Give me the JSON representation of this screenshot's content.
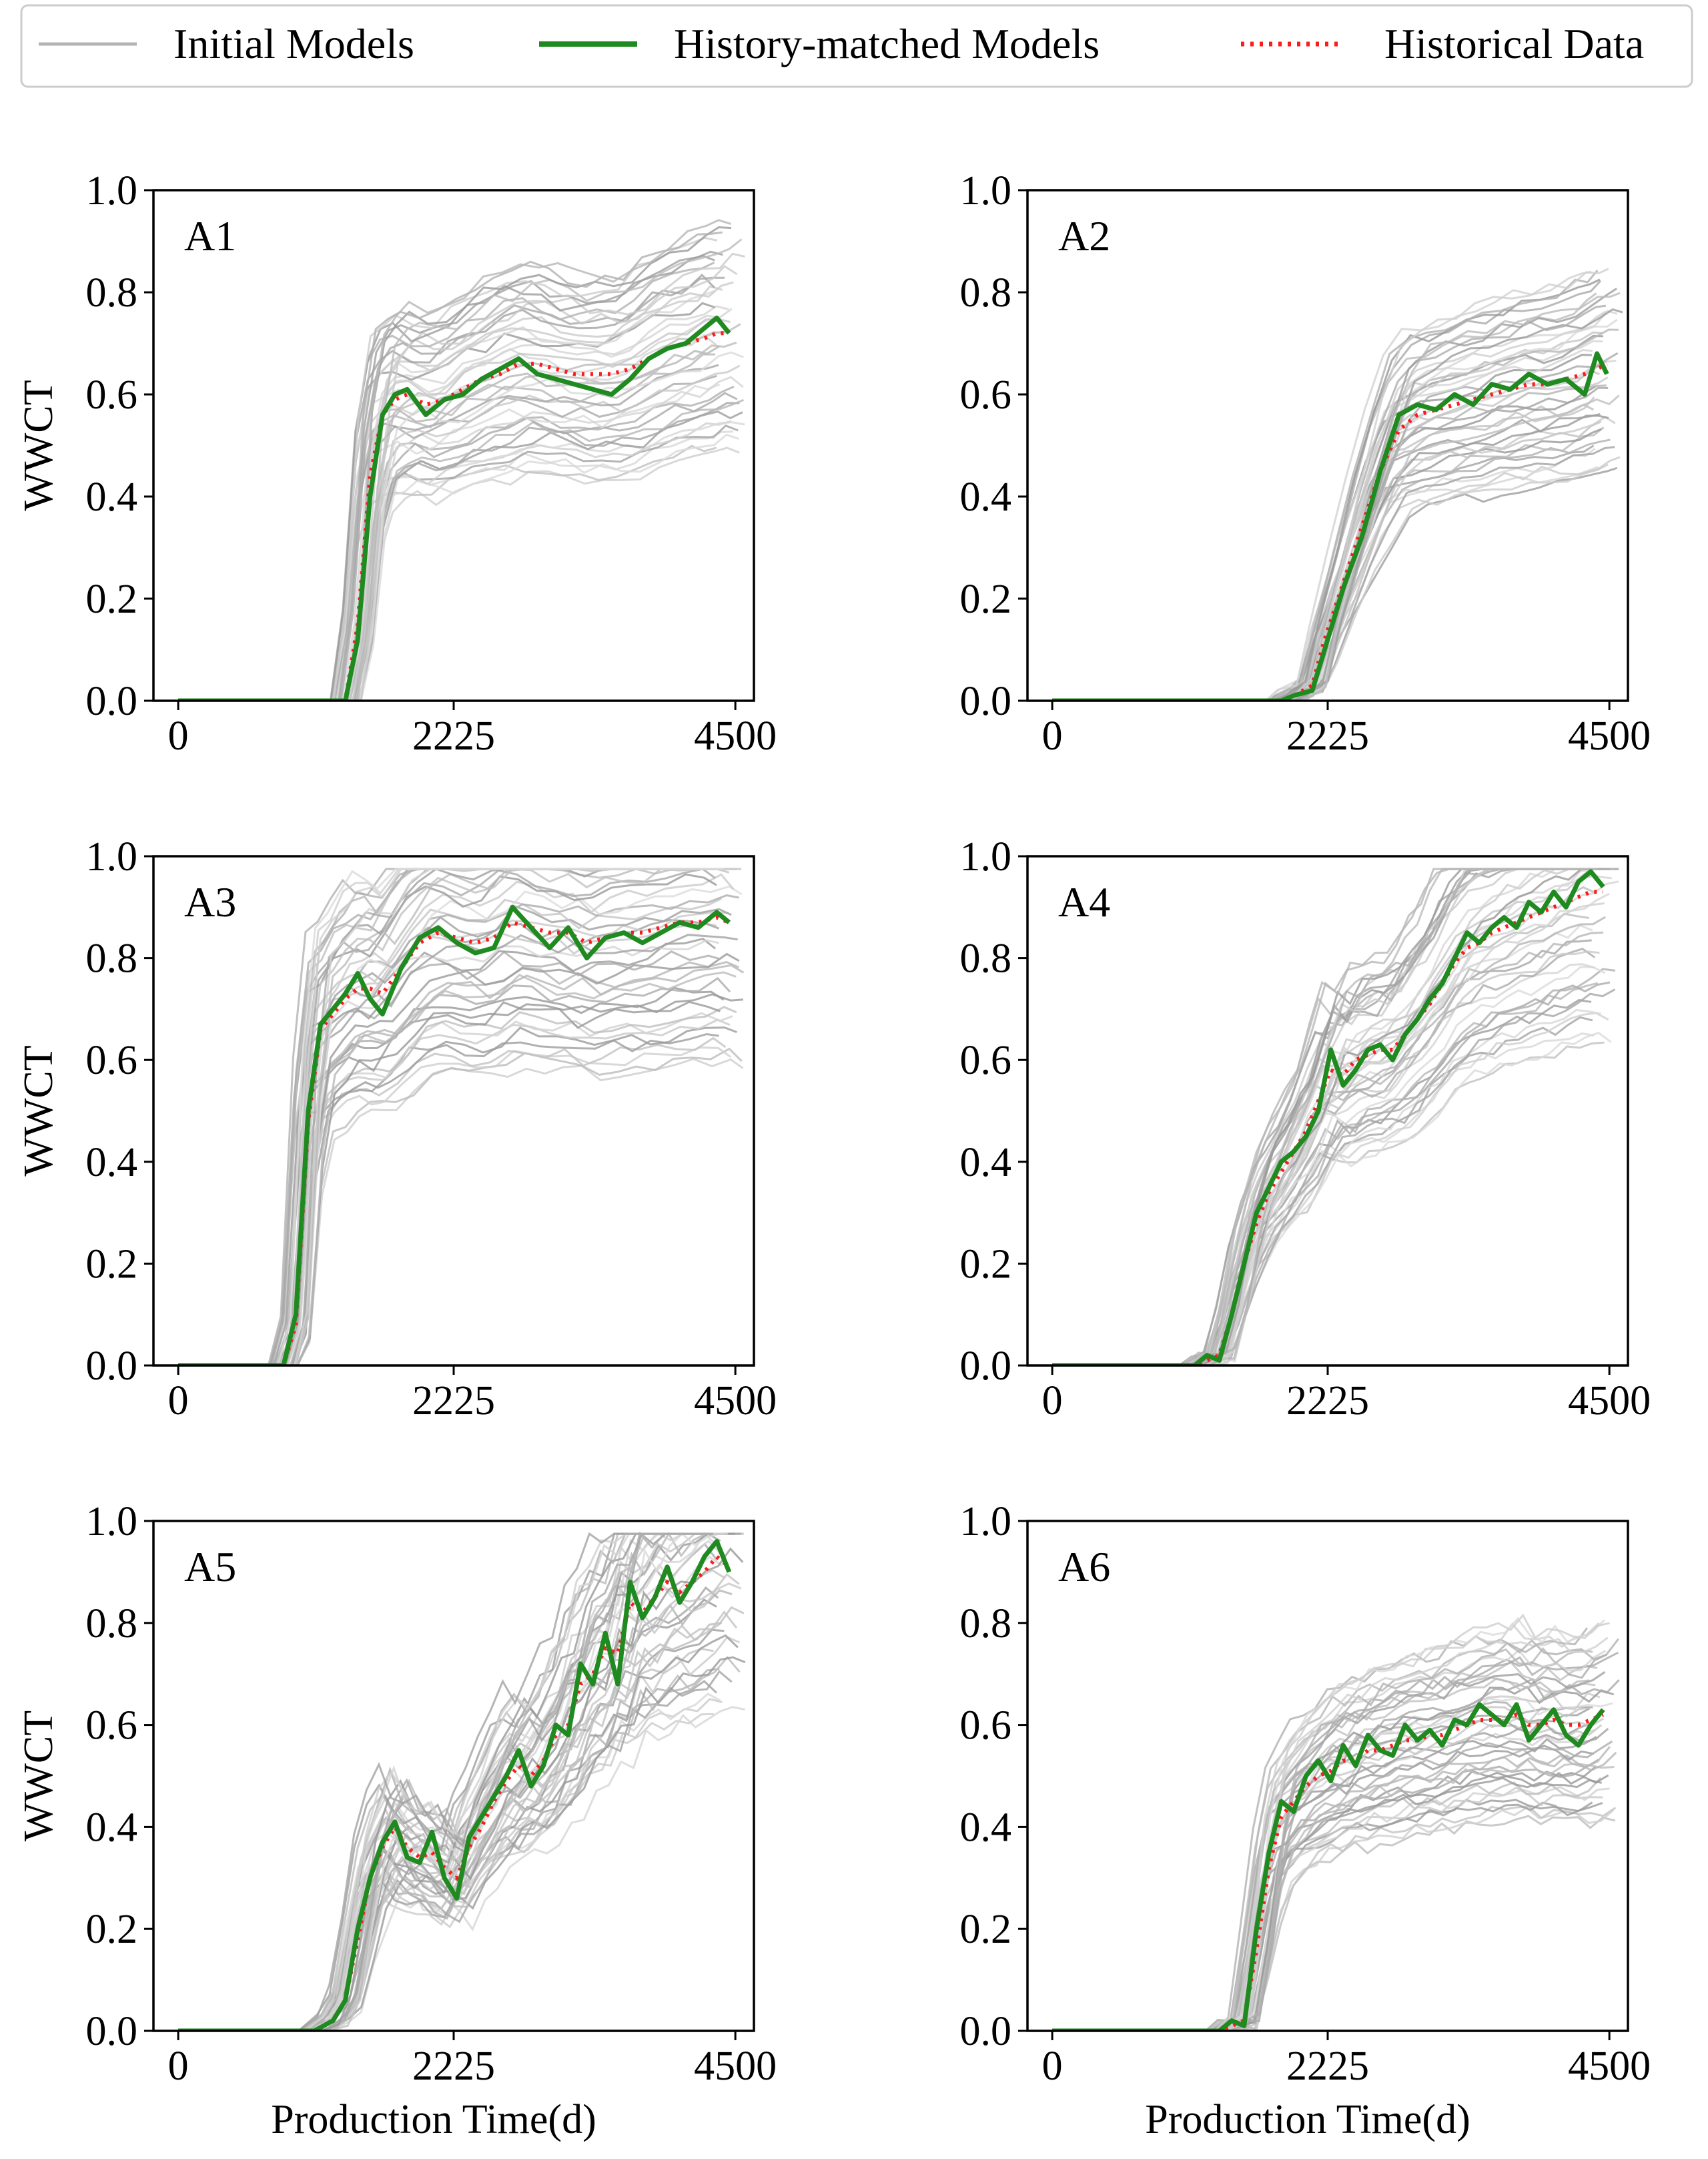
{
  "legend": {
    "initial": "Initial Models",
    "matched": "History-matched Models",
    "historical": "Historical Data"
  },
  "colors": {
    "initial": "#b4b4b4",
    "matched": "#1f8a1f",
    "historical": "#ff1a1a",
    "frame": "#000000"
  },
  "chart_data": [
    {
      "type": "line",
      "panel": "A1",
      "xlabel": "",
      "ylabel": "WWCT",
      "xlim": [
        -200,
        4650
      ],
      "ylim": [
        0,
        1.0
      ],
      "xticks": [
        0,
        2225,
        4500
      ],
      "yticks": [
        0.0,
        0.2,
        0.4,
        0.6,
        0.8,
        1.0
      ],
      "series": [
        {
          "name": "History-matched Models",
          "x": [
            0,
            1000,
            1350,
            1450,
            1550,
            1650,
            1750,
            1850,
            2000,
            2150,
            2300,
            2450,
            2600,
            2750,
            2900,
            3050,
            3200,
            3350,
            3500,
            3650,
            3800,
            3950,
            4100,
            4250,
            4350,
            4450
          ],
          "values": [
            0,
            0,
            0,
            0.12,
            0.4,
            0.56,
            0.6,
            0.61,
            0.56,
            0.59,
            0.6,
            0.63,
            0.65,
            0.67,
            0.64,
            0.63,
            0.62,
            0.61,
            0.6,
            0.63,
            0.67,
            0.69,
            0.7,
            0.73,
            0.75,
            0.72
          ]
        },
        {
          "name": "Historical Data",
          "x": [
            0,
            1000,
            1350,
            1450,
            1550,
            1650,
            1750,
            1850,
            2000,
            2150,
            2300,
            2450,
            2600,
            2750,
            2900,
            3050,
            3200,
            3350,
            3500,
            3650,
            3800,
            3950,
            4100,
            4250,
            4350,
            4450
          ],
          "values": [
            0,
            0,
            0,
            0.15,
            0.44,
            0.56,
            0.59,
            0.6,
            0.58,
            0.59,
            0.61,
            0.63,
            0.64,
            0.66,
            0.66,
            0.65,
            0.64,
            0.64,
            0.64,
            0.65,
            0.67,
            0.69,
            0.7,
            0.71,
            0.72,
            0.72
          ]
        }
      ]
    },
    {
      "type": "line",
      "panel": "A2",
      "xlabel": "",
      "ylabel": "",
      "xlim": [
        -200,
        4650
      ],
      "ylim": [
        0,
        1.0
      ],
      "xticks": [
        0,
        2225,
        4500
      ],
      "yticks": [
        0.0,
        0.2,
        0.4,
        0.6,
        0.8,
        1.0
      ],
      "series": [
        {
          "name": "History-matched Models",
          "x": [
            0,
            1850,
            1950,
            2100,
            2200,
            2350,
            2500,
            2650,
            2800,
            2950,
            3100,
            3250,
            3400,
            3550,
            3700,
            3850,
            4000,
            4150,
            4300,
            4400,
            4480
          ],
          "values": [
            0,
            0,
            0.01,
            0.02,
            0.1,
            0.22,
            0.32,
            0.45,
            0.56,
            0.58,
            0.57,
            0.6,
            0.58,
            0.62,
            0.61,
            0.64,
            0.62,
            0.63,
            0.6,
            0.68,
            0.64
          ]
        },
        {
          "name": "Historical Data",
          "x": [
            0,
            1850,
            1950,
            2100,
            2200,
            2350,
            2500,
            2650,
            2800,
            2950,
            3100,
            3250,
            3400,
            3550,
            3700,
            3850,
            4000,
            4150,
            4300,
            4400,
            4480
          ],
          "values": [
            0,
            0,
            0.01,
            0.03,
            0.12,
            0.23,
            0.34,
            0.45,
            0.53,
            0.56,
            0.57,
            0.58,
            0.59,
            0.6,
            0.61,
            0.62,
            0.62,
            0.63,
            0.64,
            0.65,
            0.66
          ]
        }
      ]
    },
    {
      "type": "line",
      "panel": "A3",
      "xlabel": "",
      "ylabel": "WWCT",
      "xlim": [
        -200,
        4650
      ],
      "ylim": [
        0,
        1.0
      ],
      "xticks": [
        0,
        2225,
        4500
      ],
      "yticks": [
        0.0,
        0.2,
        0.4,
        0.6,
        0.8,
        1.0
      ],
      "series": [
        {
          "name": "History-matched Models",
          "x": [
            0,
            850,
            950,
            1050,
            1150,
            1250,
            1350,
            1450,
            1550,
            1650,
            1800,
            1950,
            2100,
            2250,
            2400,
            2550,
            2700,
            2850,
            3000,
            3150,
            3300,
            3450,
            3600,
            3750,
            3900,
            4050,
            4200,
            4350,
            4450
          ],
          "values": [
            0,
            0,
            0.1,
            0.5,
            0.67,
            0.7,
            0.73,
            0.77,
            0.72,
            0.69,
            0.78,
            0.84,
            0.86,
            0.83,
            0.81,
            0.82,
            0.9,
            0.86,
            0.82,
            0.86,
            0.8,
            0.84,
            0.85,
            0.83,
            0.85,
            0.87,
            0.86,
            0.89,
            0.87
          ]
        },
        {
          "name": "Historical Data",
          "x": [
            0,
            850,
            950,
            1050,
            1150,
            1250,
            1350,
            1450,
            1550,
            1650,
            1800,
            1950,
            2100,
            2250,
            2400,
            2550,
            2700,
            2850,
            3000,
            3150,
            3300,
            3450,
            3600,
            3750,
            3900,
            4050,
            4200,
            4350,
            4450
          ],
          "values": [
            0,
            0,
            0.08,
            0.48,
            0.66,
            0.69,
            0.72,
            0.74,
            0.74,
            0.73,
            0.78,
            0.83,
            0.85,
            0.84,
            0.83,
            0.84,
            0.87,
            0.86,
            0.85,
            0.85,
            0.83,
            0.84,
            0.85,
            0.85,
            0.86,
            0.87,
            0.87,
            0.88,
            0.87
          ]
        }
      ]
    },
    {
      "type": "line",
      "panel": "A4",
      "xlabel": "",
      "ylabel": "",
      "xlim": [
        -200,
        4650
      ],
      "ylim": [
        0,
        1.0
      ],
      "xticks": [
        0,
        2225,
        4500
      ],
      "yticks": [
        0.0,
        0.2,
        0.4,
        0.6,
        0.8,
        1.0
      ],
      "series": [
        {
          "name": "History-matched Models",
          "x": [
            0,
            1150,
            1250,
            1350,
            1450,
            1550,
            1650,
            1750,
            1850,
            1950,
            2050,
            2150,
            2250,
            2350,
            2450,
            2550,
            2650,
            2750,
            2850,
            2950,
            3050,
            3150,
            3250,
            3350,
            3450,
            3550,
            3650,
            3750,
            3850,
            3950,
            4050,
            4150,
            4250,
            4350,
            4450
          ],
          "values": [
            0,
            0,
            0.02,
            0.01,
            0.1,
            0.2,
            0.3,
            0.35,
            0.4,
            0.42,
            0.45,
            0.5,
            0.62,
            0.55,
            0.58,
            0.62,
            0.63,
            0.6,
            0.65,
            0.68,
            0.72,
            0.75,
            0.8,
            0.85,
            0.83,
            0.86,
            0.88,
            0.86,
            0.91,
            0.89,
            0.93,
            0.9,
            0.95,
            0.97,
            0.94
          ]
        },
        {
          "name": "Historical Data",
          "x": [
            0,
            1150,
            1250,
            1350,
            1450,
            1550,
            1650,
            1750,
            1850,
            1950,
            2050,
            2150,
            2250,
            2350,
            2450,
            2550,
            2650,
            2750,
            2850,
            2950,
            3050,
            3150,
            3250,
            3350,
            3450,
            3550,
            3650,
            3750,
            3850,
            3950,
            4050,
            4150,
            4250,
            4350,
            4450
          ],
          "values": [
            0,
            0,
            0.01,
            0.02,
            0.1,
            0.2,
            0.28,
            0.34,
            0.38,
            0.42,
            0.46,
            0.52,
            0.58,
            0.57,
            0.6,
            0.61,
            0.62,
            0.62,
            0.65,
            0.68,
            0.71,
            0.75,
            0.79,
            0.82,
            0.83,
            0.85,
            0.86,
            0.87,
            0.88,
            0.89,
            0.9,
            0.91,
            0.92,
            0.93,
            0.93
          ]
        }
      ]
    },
    {
      "type": "line",
      "panel": "A5",
      "xlabel": "Production Time(d)",
      "ylabel": "WWCT",
      "xlim": [
        -200,
        4650
      ],
      "ylim": [
        0,
        1.0
      ],
      "xticks": [
        0,
        2225,
        4500
      ],
      "yticks": [
        0.0,
        0.2,
        0.4,
        0.6,
        0.8,
        1.0
      ],
      "series": [
        {
          "name": "History-matched Models",
          "x": [
            0,
            1100,
            1250,
            1350,
            1450,
            1550,
            1650,
            1750,
            1850,
            1950,
            2050,
            2150,
            2250,
            2350,
            2450,
            2550,
            2650,
            2750,
            2850,
            2950,
            3050,
            3150,
            3250,
            3350,
            3450,
            3550,
            3650,
            3750,
            3850,
            3950,
            4050,
            4150,
            4250,
            4350,
            4450
          ],
          "values": [
            0,
            0,
            0.02,
            0.06,
            0.2,
            0.3,
            0.37,
            0.41,
            0.34,
            0.33,
            0.39,
            0.3,
            0.26,
            0.38,
            0.42,
            0.46,
            0.5,
            0.55,
            0.48,
            0.52,
            0.6,
            0.58,
            0.72,
            0.68,
            0.78,
            0.68,
            0.88,
            0.81,
            0.85,
            0.91,
            0.84,
            0.88,
            0.93,
            0.96,
            0.9
          ]
        },
        {
          "name": "Historical Data",
          "x": [
            0,
            1100,
            1250,
            1350,
            1450,
            1550,
            1650,
            1750,
            1850,
            1950,
            2050,
            2150,
            2250,
            2350,
            2450,
            2550,
            2650,
            2750,
            2850,
            2950,
            3050,
            3150,
            3250,
            3350,
            3450,
            3550,
            3650,
            3750,
            3850,
            3950,
            4050,
            4150,
            4250,
            4350,
            4450
          ],
          "values": [
            0,
            0,
            0.02,
            0.06,
            0.18,
            0.3,
            0.36,
            0.4,
            0.36,
            0.34,
            0.35,
            0.32,
            0.3,
            0.36,
            0.4,
            0.45,
            0.49,
            0.52,
            0.5,
            0.53,
            0.58,
            0.6,
            0.68,
            0.7,
            0.75,
            0.74,
            0.84,
            0.82,
            0.85,
            0.88,
            0.86,
            0.88,
            0.9,
            0.93,
            0.91
          ]
        }
      ]
    },
    {
      "type": "line",
      "panel": "A6",
      "xlabel": "Production Time(d)",
      "ylabel": "",
      "xlim": [
        -200,
        4650
      ],
      "ylim": [
        0,
        1.0
      ],
      "xticks": [
        0,
        2225,
        4500
      ],
      "yticks": [
        0.0,
        0.2,
        0.4,
        0.6,
        0.8,
        1.0
      ],
      "series": [
        {
          "name": "History-matched Models",
          "x": [
            0,
            1350,
            1450,
            1550,
            1650,
            1750,
            1850,
            1950,
            2050,
            2150,
            2250,
            2350,
            2450,
            2550,
            2650,
            2750,
            2850,
            2950,
            3050,
            3150,
            3250,
            3350,
            3450,
            3550,
            3650,
            3750,
            3850,
            3950,
            4050,
            4150,
            4250,
            4350,
            4450
          ],
          "values": [
            0,
            0,
            0.02,
            0.01,
            0.2,
            0.35,
            0.45,
            0.43,
            0.5,
            0.53,
            0.49,
            0.56,
            0.52,
            0.58,
            0.55,
            0.54,
            0.6,
            0.57,
            0.59,
            0.56,
            0.61,
            0.6,
            0.64,
            0.62,
            0.6,
            0.64,
            0.57,
            0.6,
            0.63,
            0.58,
            0.56,
            0.6,
            0.63
          ]
        },
        {
          "name": "Historical Data",
          "x": [
            0,
            1350,
            1450,
            1550,
            1650,
            1750,
            1850,
            1950,
            2050,
            2150,
            2250,
            2350,
            2450,
            2550,
            2650,
            2750,
            2850,
            2950,
            3050,
            3150,
            3250,
            3350,
            3450,
            3550,
            3650,
            3750,
            3850,
            3950,
            4050,
            4150,
            4250,
            4350,
            4450
          ],
          "values": [
            0,
            0,
            0.01,
            0.02,
            0.16,
            0.32,
            0.42,
            0.45,
            0.48,
            0.5,
            0.51,
            0.53,
            0.53,
            0.55,
            0.55,
            0.56,
            0.57,
            0.57,
            0.58,
            0.58,
            0.59,
            0.6,
            0.61,
            0.61,
            0.61,
            0.62,
            0.6,
            0.6,
            0.61,
            0.6,
            0.6,
            0.61,
            0.62
          ]
        }
      ]
    }
  ]
}
